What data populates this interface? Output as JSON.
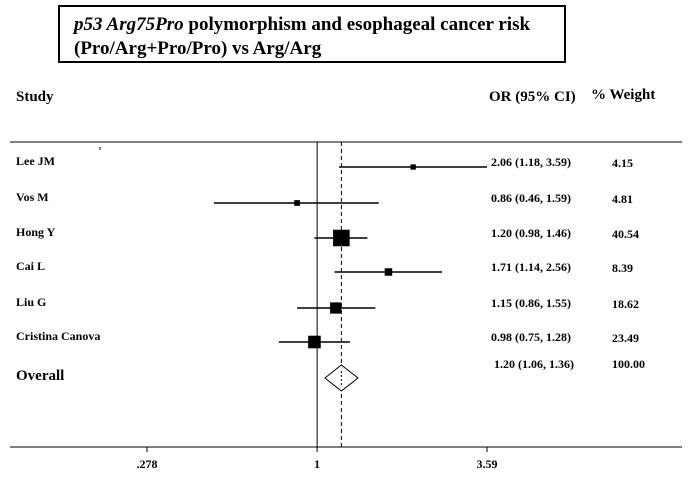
{
  "title": {
    "italic_part": "p53 Arg75Pro",
    "rest_line1": " polymorphism and esophageal cancer risk",
    "line2": "(Pro/Arg+Pro/Pro) vs Arg/Arg"
  },
  "headers": {
    "study": "Study",
    "or_ci": "OR (95% CI)",
    "weight": "% Weight"
  },
  "chart_data": {
    "type": "forest",
    "scale": "log",
    "x_ticks": [
      {
        "value": 0.278,
        "label": ".278"
      },
      {
        "value": 1,
        "label": "1"
      },
      {
        "value": 3.59,
        "label": "3.59"
      }
    ],
    "xlim": [
      0.278,
      3.59
    ],
    "reference_line": 1,
    "overall_line": 1.2,
    "studies": [
      {
        "name": "Lee JM",
        "or": 2.06,
        "lo": 1.18,
        "hi": 3.59,
        "ci_text": "2.06 (1.18, 3.59)",
        "weight": 4.15,
        "weight_text": "4.15"
      },
      {
        "name": "Vos M",
        "or": 0.86,
        "lo": 0.46,
        "hi": 1.59,
        "ci_text": "0.86 (0.46, 1.59)",
        "weight": 4.81,
        "weight_text": "4.81"
      },
      {
        "name": "Hong Y",
        "or": 1.2,
        "lo": 0.98,
        "hi": 1.46,
        "ci_text": "1.20 (0.98, 1.46)",
        "weight": 40.54,
        "weight_text": "40.54"
      },
      {
        "name": "Cai L",
        "or": 1.71,
        "lo": 1.14,
        "hi": 2.56,
        "ci_text": "1.71 (1.14, 2.56)",
        "weight": 8.39,
        "weight_text": "8.39"
      },
      {
        "name": "Liu G",
        "or": 1.15,
        "lo": 0.86,
        "hi": 1.55,
        "ci_text": "1.15 (0.86, 1.55)",
        "weight": 18.62,
        "weight_text": "18.62"
      },
      {
        "name": "Cristina Canova",
        "or": 0.98,
        "lo": 0.75,
        "hi": 1.28,
        "ci_text": "0.98 (0.75, 1.28)",
        "weight": 23.49,
        "weight_text": "23.49"
      }
    ],
    "overall": {
      "name": "Overall",
      "or": 1.2,
      "lo": 1.06,
      "hi": 1.36,
      "ci_text": "1.20 (1.06, 1.36)",
      "weight_text": "100.00"
    }
  }
}
